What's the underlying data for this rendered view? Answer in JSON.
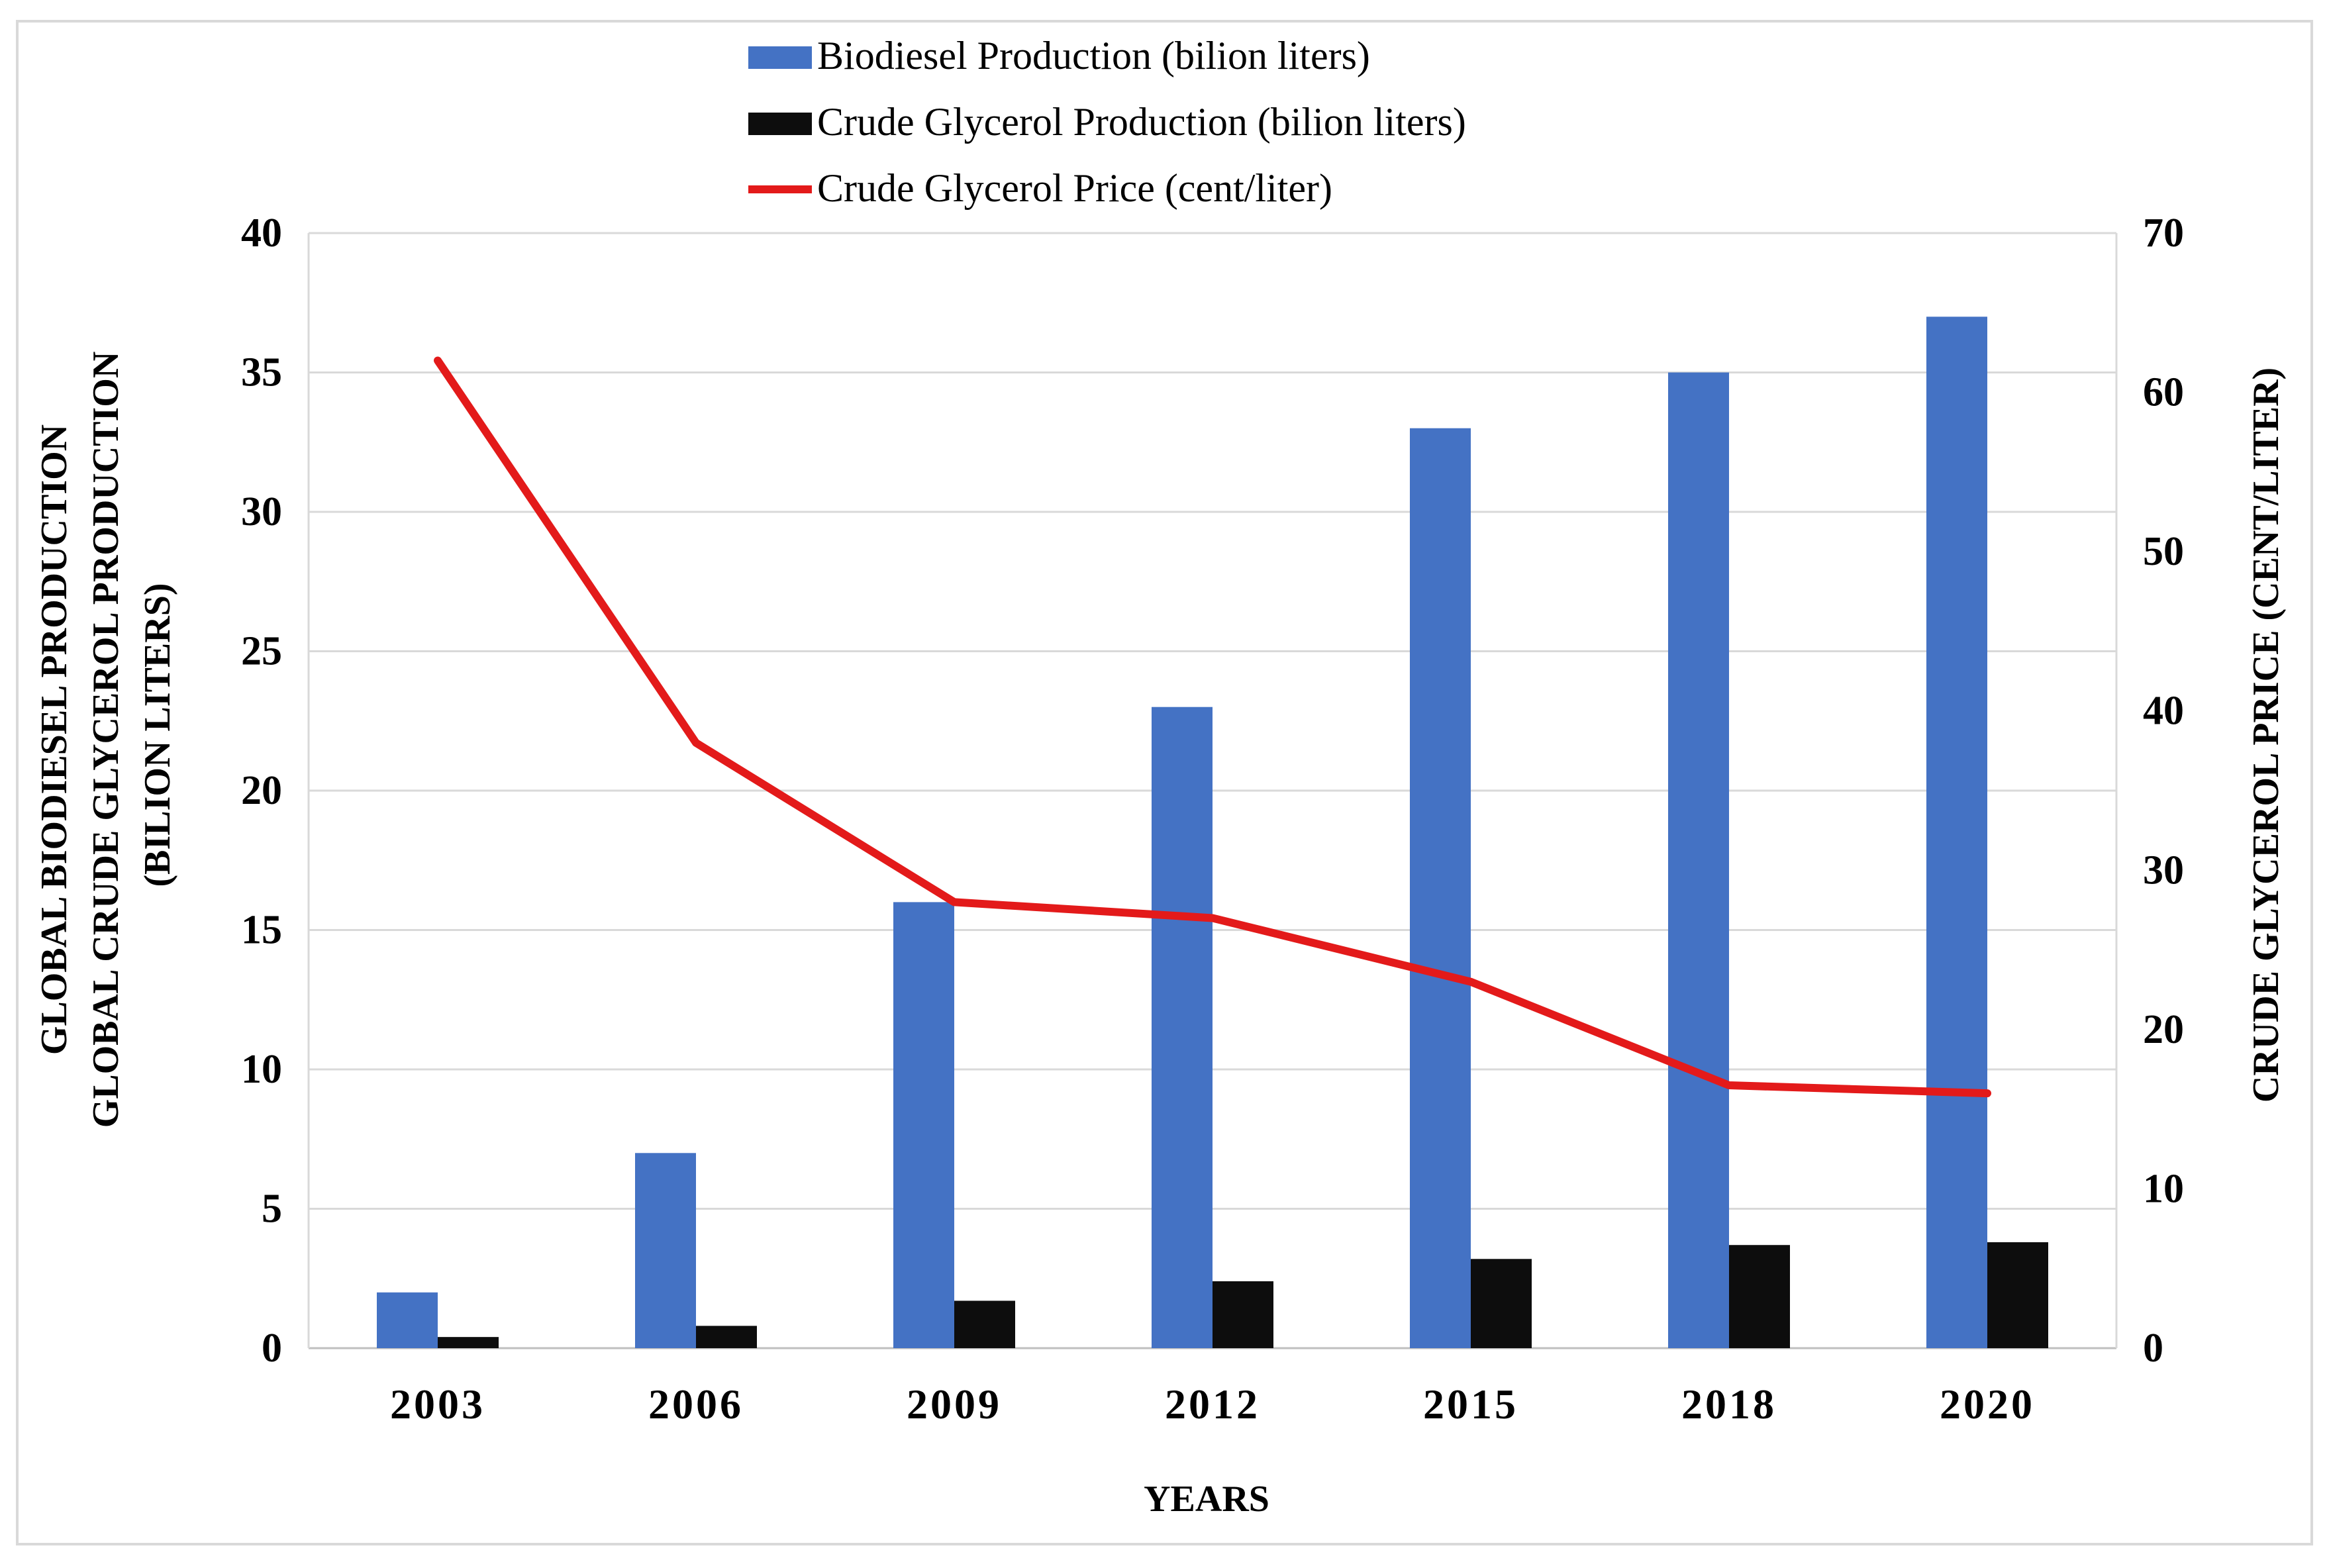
{
  "chart_data": {
    "type": "bar",
    "xlabel": "YEARS",
    "ylabel_lines": [
      "GLOBAL BIODIESEL PRODUCTION",
      "GLOBAL CRUDE GLYCEROL PRODUCTION",
      "(BILION LITERS)"
    ],
    "y2label": "CRUDE GLYCEROL PRICE (CENT/LITER)",
    "ylim": [
      0,
      40
    ],
    "y2lim": [
      0,
      70
    ],
    "yticks": [
      "0",
      "5",
      "10",
      "15",
      "20",
      "25",
      "30",
      "35",
      "40"
    ],
    "y2ticks": [
      "0",
      "10",
      "20",
      "30",
      "40",
      "50",
      "60",
      "70"
    ],
    "grid": true,
    "legend_position": "top-center",
    "categories": [
      "2003",
      "2006",
      "2009",
      "2012",
      "2015",
      "2018",
      "2020"
    ],
    "series": [
      {
        "name": "Biodiesel Production (bilion liters)",
        "kind": "bar",
        "axis": "left",
        "color": "#4472C4",
        "values": [
          2,
          7,
          16,
          23,
          33,
          35,
          37
        ]
      },
      {
        "name": "Crude Glycerol Production (bilion liters)",
        "kind": "bar",
        "axis": "left",
        "color": "#0d0d0d",
        "values": [
          0.4,
          0.8,
          1.7,
          2.4,
          3.2,
          3.7,
          3.8
        ]
      },
      {
        "name": "Crude Glycerol Price (cent/liter)",
        "kind": "line",
        "axis": "right",
        "color": "#e31a1a",
        "values": [
          62,
          38,
          28,
          27,
          23,
          16.5,
          16
        ]
      }
    ]
  }
}
